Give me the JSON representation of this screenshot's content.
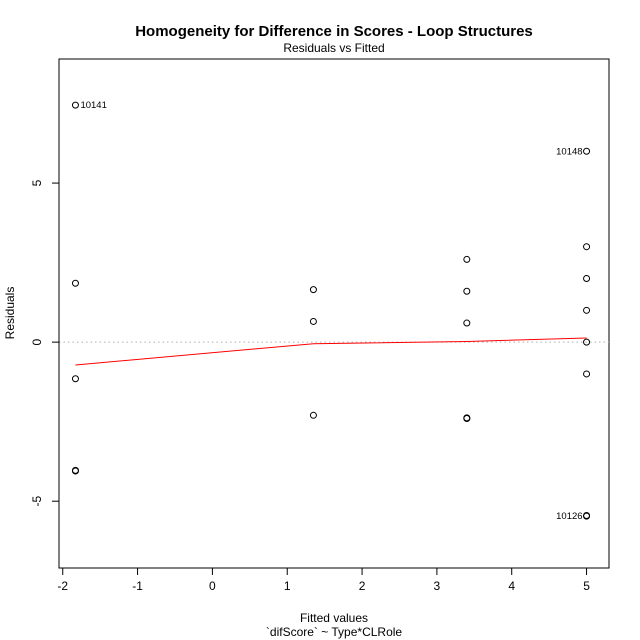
{
  "chart_data": {
    "type": "scatter",
    "title": "Homogeneity for Difference in Scores - Loop Structures",
    "subtitle": "Residuals vs Fitted",
    "xlabel": "Fitted values",
    "xlabel_sub": "`difScore` ~ Type*CLRole",
    "ylabel": "Residuals",
    "xlim": [
      -2.05,
      5.3
    ],
    "ylim": [
      -7.1,
      8.9
    ],
    "x_ticks": [
      -2,
      -1,
      0,
      1,
      2,
      3,
      4,
      5
    ],
    "y_ticks": [
      -5,
      0,
      5
    ],
    "points": [
      {
        "x": -1.83,
        "y": 7.45
      },
      {
        "x": -1.83,
        "y": 1.85
      },
      {
        "x": -1.83,
        "y": -1.15
      },
      {
        "x": -1.83,
        "y": -4.03
      },
      {
        "x": -1.83,
        "y": -4.05
      },
      {
        "x": 1.35,
        "y": 1.65
      },
      {
        "x": 1.35,
        "y": 0.65
      },
      {
        "x": 1.35,
        "y": -2.3
      },
      {
        "x": 3.4,
        "y": 2.6
      },
      {
        "x": 3.4,
        "y": 1.6
      },
      {
        "x": 3.4,
        "y": 0.6
      },
      {
        "x": 3.4,
        "y": -2.38
      },
      {
        "x": 3.4,
        "y": -2.4
      },
      {
        "x": 5.0,
        "y": 6.0
      },
      {
        "x": 5.0,
        "y": 3.0
      },
      {
        "x": 5.0,
        "y": 2.0
      },
      {
        "x": 5.0,
        "y": 1.0
      },
      {
        "x": 5.0,
        "y": 0.0
      },
      {
        "x": 5.0,
        "y": -1.0
      },
      {
        "x": 5.0,
        "y": -5.45
      },
      {
        "x": 5.0,
        "y": -5.47
      }
    ],
    "point_labels": [
      {
        "x": -1.83,
        "y": 7.45,
        "text": "10141",
        "side": "right"
      },
      {
        "x": 5.0,
        "y": 6.0,
        "text": "10148",
        "side": "left"
      },
      {
        "x": 5.0,
        "y": -5.46,
        "text": "10126",
        "side": "left"
      }
    ],
    "smoother": {
      "color": "#ff0000",
      "x": [
        -1.83,
        1.35,
        3.4,
        5.0
      ],
      "y": [
        -0.72,
        -0.05,
        0.02,
        0.13
      ]
    },
    "reference_line": {
      "y": 0,
      "style": "dotted",
      "color": "#b0b0b0"
    },
    "grid": false
  }
}
